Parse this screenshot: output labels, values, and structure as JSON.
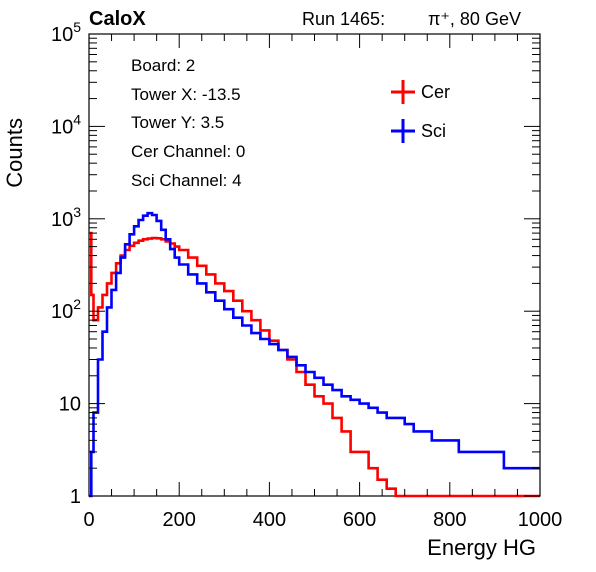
{
  "header": {
    "brand": "CaloX",
    "run_label": "Run 1465:",
    "particle": "π⁺, 80 GeV"
  },
  "info_box": [
    "Board: 2",
    "Tower X: -13.5",
    "Tower Y: 3.5",
    "Cer Channel: 0",
    "Sci Channel: 4"
  ],
  "chart_data": {
    "type": "line",
    "xlabel": "Energy HG",
    "ylabel": "Counts",
    "xlim": [
      0,
      1000
    ],
    "ylim": [
      1,
      100000
    ],
    "log_y": true,
    "legend_position": "top-right",
    "x_ticks": [
      0,
      200,
      400,
      600,
      800,
      1000
    ],
    "y_ticks": [
      {
        "value": 1,
        "base": "1",
        "exp": ""
      },
      {
        "value": 10,
        "base": "10",
        "exp": ""
      },
      {
        "value": 100,
        "base": "10",
        "exp": "2"
      },
      {
        "value": 1000,
        "base": "10",
        "exp": "3"
      },
      {
        "value": 10000,
        "base": "10",
        "exp": "4"
      },
      {
        "value": 100000,
        "base": "10",
        "exp": "5"
      }
    ],
    "series": [
      {
        "name": "Cer",
        "color": "#ff0000",
        "x": [
          0,
          5,
          10,
          20,
          30,
          40,
          50,
          60,
          70,
          80,
          90,
          100,
          110,
          120,
          130,
          140,
          150,
          160,
          170,
          180,
          190,
          200,
          220,
          240,
          260,
          280,
          300,
          320,
          340,
          360,
          380,
          400,
          420,
          440,
          460,
          480,
          500,
          520,
          540,
          560,
          580,
          600,
          620,
          640,
          660,
          680,
          700,
          720,
          740,
          760,
          780,
          800,
          820,
          840,
          860,
          880,
          900,
          920,
          940,
          960,
          980,
          1000
        ],
        "y": [
          700,
          150,
          80,
          110,
          150,
          200,
          260,
          330,
          400,
          460,
          510,
          550,
          580,
          600,
          610,
          620,
          615,
          600,
          570,
          540,
          500,
          460,
          380,
          310,
          250,
          200,
          165,
          130,
          100,
          80,
          62,
          48,
          38,
          30,
          22,
          16,
          12,
          10,
          7,
          5,
          3,
          3,
          2,
          1.5,
          1.2,
          1,
          1,
          1,
          1,
          1,
          1,
          1,
          1,
          1,
          1,
          1,
          1,
          1,
          1,
          1,
          1,
          1
        ]
      },
      {
        "name": "Sci",
        "color": "#0000ff",
        "x": [
          0,
          5,
          10,
          20,
          30,
          40,
          50,
          60,
          70,
          80,
          90,
          100,
          110,
          120,
          130,
          140,
          150,
          160,
          170,
          180,
          190,
          200,
          220,
          240,
          260,
          280,
          300,
          320,
          340,
          360,
          380,
          400,
          420,
          440,
          460,
          480,
          500,
          520,
          540,
          560,
          580,
          600,
          620,
          640,
          660,
          680,
          700,
          720,
          740,
          760,
          780,
          800,
          820,
          840,
          860,
          880,
          900,
          920,
          940,
          960,
          980,
          1000
        ],
        "y": [
          1,
          3,
          8,
          30,
          60,
          110,
          170,
          260,
          380,
          530,
          680,
          830,
          970,
          1080,
          1150,
          1100,
          950,
          760,
          600,
          470,
          380,
          320,
          250,
          200,
          160,
          130,
          105,
          85,
          70,
          58,
          50,
          44,
          38,
          32,
          26,
          22,
          19,
          16,
          14,
          12,
          11,
          10,
          9,
          8,
          7,
          7,
          6,
          5,
          5,
          4,
          4,
          4,
          3,
          3,
          3,
          3,
          3,
          2,
          2,
          2,
          2,
          2
        ]
      }
    ]
  }
}
